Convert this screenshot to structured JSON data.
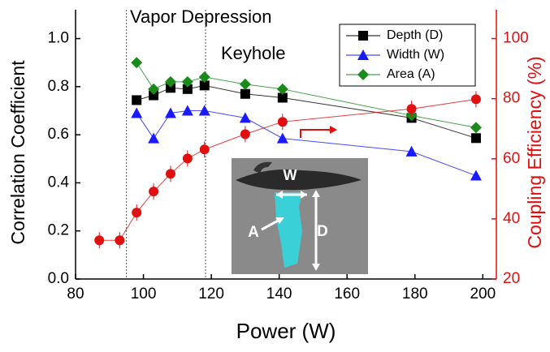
{
  "chart_data": {
    "type": "line",
    "xlabel": "Power (W)",
    "ylabel": "Correlation Coefficient",
    "y2label": "Coupling Efficiency (%)",
    "x": [
      87,
      93,
      98,
      103,
      108,
      113,
      118,
      130,
      141,
      179,
      198
    ],
    "series": [
      {
        "name": "Depth (D)",
        "color": "#000000",
        "marker": "square",
        "values": [
          null,
          null,
          0.744,
          0.764,
          0.795,
          0.79,
          0.805,
          0.77,
          0.754,
          0.67,
          0.586
        ]
      },
      {
        "name": "Width (W)",
        "color": "#1a1aff",
        "marker": "triangle",
        "values": [
          null,
          null,
          0.69,
          0.585,
          0.69,
          0.7,
          0.7,
          0.67,
          0.585,
          0.53,
          0.43
        ]
      },
      {
        "name": "Area (A)",
        "color": "#1a8a1a",
        "marker": "diamond",
        "values": [
          null,
          null,
          0.9,
          0.79,
          0.82,
          0.82,
          0.84,
          0.81,
          0.79,
          0.68,
          0.63
        ]
      },
      {
        "color": "#e01010",
        "marker": "circle",
        "axis": "y2",
        "values": [
          32.9,
          32.9,
          42.1,
          49.1,
          55,
          60.1,
          63.1,
          68.2,
          72.3,
          76.6,
          79.8
        ]
      }
    ],
    "xlim": [
      80,
      204
    ],
    "xticks": [
      80,
      100,
      120,
      140,
      160,
      180,
      200
    ],
    "ylim": [
      0,
      1.12
    ],
    "yticks": [
      {
        "value": 0,
        "label": "0.0"
      },
      0.2,
      0.4,
      0.6,
      0.8,
      {
        "value": 1,
        "label": "1.0"
      }
    ],
    "y2lim": [
      20,
      109.6
    ],
    "y2ticks": [
      20,
      40,
      60,
      80,
      100
    ],
    "vlines": [
      95,
      118.3
    ],
    "annotations": [
      "Vapor Depression",
      "Keyhole",
      "W",
      "A",
      "D"
    ],
    "legend": "top-right"
  }
}
